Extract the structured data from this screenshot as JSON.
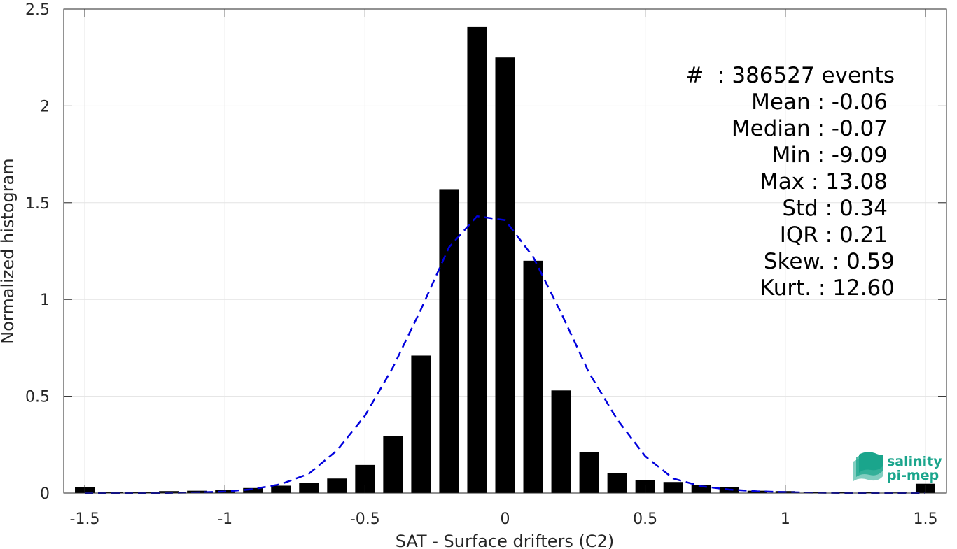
{
  "chart_data": {
    "type": "bar",
    "xlabel": "SAT - Surface drifters (C2)",
    "ylabel": "Normalized histogram",
    "xlim": [
      -1.575,
      1.575
    ],
    "ylim": [
      0,
      2.5
    ],
    "xticks": [
      -1.5,
      -1,
      -0.5,
      0,
      0.5,
      1,
      1.5
    ],
    "xtick_labels": [
      "-1.5",
      "-1",
      "-0.5",
      "0",
      "0.5",
      "1",
      "1.5"
    ],
    "yticks": [
      0,
      0.5,
      1,
      1.5,
      2,
      2.5
    ],
    "ytick_labels": [
      "0",
      "0.5",
      "1",
      "1.5",
      "2",
      "2.5"
    ],
    "grid": true,
    "bar_color": "#000000",
    "fit_color": "#0000dd",
    "series": [
      {
        "type": "bar",
        "x": [
          -1.5,
          -1.4,
          -1.3,
          -1.2,
          -1.1,
          -1.0,
          -0.9,
          -0.8,
          -0.7,
          -0.6,
          -0.5,
          -0.4,
          -0.3,
          -0.2,
          -0.1,
          0.0,
          0.1,
          0.2,
          0.3,
          0.4,
          0.5,
          0.6,
          0.7,
          0.8,
          0.9,
          1.0,
          1.1,
          1.2,
          1.3,
          1.4,
          1.5
        ],
        "values": [
          0.029,
          0.005,
          0.007,
          0.01,
          0.012,
          0.015,
          0.026,
          0.038,
          0.052,
          0.075,
          0.145,
          0.295,
          0.71,
          1.57,
          2.41,
          2.25,
          1.2,
          0.53,
          0.21,
          0.103,
          0.068,
          0.057,
          0.041,
          0.03,
          0.012,
          0.01,
          0.006,
          0.005,
          0.004,
          0.003,
          0.048
        ]
      },
      {
        "type": "line",
        "style": "dashed",
        "x": [
          -1.5,
          -1.4,
          -1.3,
          -1.2,
          -1.1,
          -1.0,
          -0.9,
          -0.8,
          -0.7,
          -0.6,
          -0.5,
          -0.4,
          -0.3,
          -0.2,
          -0.1,
          0.0,
          0.1,
          0.2,
          0.3,
          0.4,
          0.5,
          0.6,
          0.7,
          0.8,
          0.9,
          1.0,
          1.1,
          1.2,
          1.3,
          1.4,
          1.5
        ],
        "values": [
          0.0,
          0.0,
          0.0,
          0.001,
          0.003,
          0.008,
          0.02,
          0.046,
          0.1,
          0.22,
          0.4,
          0.65,
          0.95,
          1.27,
          1.43,
          1.41,
          1.22,
          0.93,
          0.62,
          0.38,
          0.19,
          0.075,
          0.035,
          0.018,
          0.009,
          0.005,
          0.002,
          0.001,
          0.0,
          0.0,
          0.0
        ]
      }
    ],
    "annotations": [
      "#  : 386527 events",
      "Mean : -0.06",
      "Median : -0.07",
      "Min : -9.09",
      "Max : 13.08",
      "Std : 0.34",
      "IQR : 0.21",
      "Skew. : 0.59",
      "Kurt. : 12.60"
    ]
  },
  "logo": {
    "line1": "salinity",
    "line2": "pi-mep",
    "color": "#1aa58c"
  }
}
